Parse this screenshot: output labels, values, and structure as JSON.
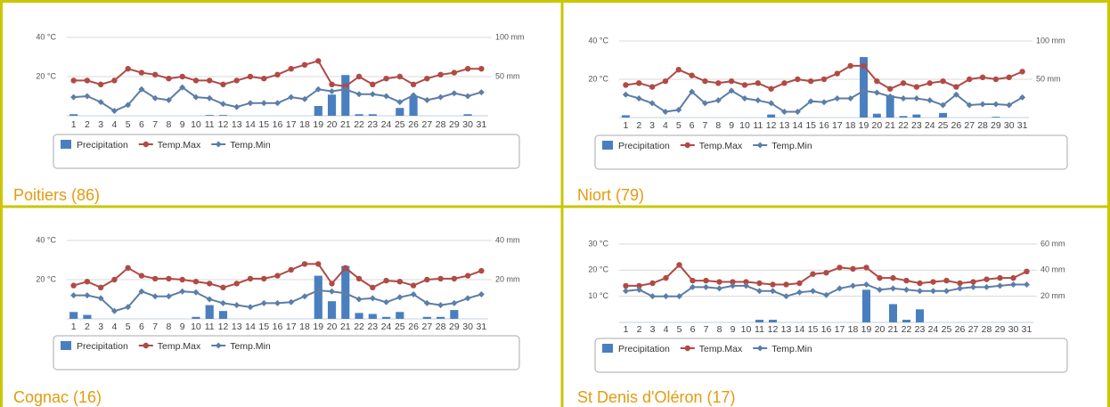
{
  "chart_data": [
    {
      "type": "combo",
      "title": "Poitiers (86)",
      "categories": [
        1,
        2,
        3,
        4,
        5,
        6,
        7,
        8,
        9,
        10,
        11,
        12,
        13,
        14,
        15,
        16,
        17,
        18,
        19,
        20,
        21,
        22,
        23,
        24,
        25,
        26,
        27,
        28,
        29,
        30,
        31
      ],
      "series": [
        {
          "name": "Precipitation",
          "type": "bar",
          "axis": "y2",
          "color": "#4a7fbf",
          "values": [
            2,
            0,
            0,
            0,
            0,
            0,
            0,
            0,
            0,
            0,
            1,
            1,
            0,
            0,
            0,
            0,
            0,
            0,
            12.5,
            27,
            52,
            2,
            2,
            0,
            10,
            25,
            0,
            0,
            0,
            2,
            0
          ]
        },
        {
          "name": "Temp.Max",
          "type": "line",
          "color": "#b04a45",
          "values": [
            18,
            18,
            16,
            18,
            24,
            22,
            21,
            19,
            20,
            18,
            18,
            16,
            18,
            20,
            19,
            21,
            24,
            26,
            28,
            16,
            15,
            20,
            16,
            19,
            20,
            16,
            19,
            21,
            22,
            24,
            24
          ]
        },
        {
          "name": "Temp.Min",
          "type": "line",
          "color": "#5b7ea8",
          "values": [
            9.5,
            10,
            7,
            2.5,
            5.5,
            13.5,
            9,
            8,
            14.5,
            9.5,
            9,
            6,
            4.5,
            6.5,
            6.5,
            6.5,
            9.5,
            8.5,
            13.5,
            12.5,
            13.5,
            11,
            11,
            10,
            7,
            10.5,
            8,
            9.5,
            11.5,
            10,
            12
          ]
        }
      ],
      "ylim": [
        0,
        40
      ],
      "yticks": [
        {
          "value": 40,
          "label": "40 °C"
        },
        {
          "value": 20,
          "label": "20 °C"
        }
      ],
      "y2lim": [
        0,
        100
      ],
      "y2ticks": [
        {
          "value": 100,
          "label": "100 mm"
        },
        {
          "value": 50,
          "label": "50 mm"
        }
      ],
      "grid": true
    },
    {
      "type": "combo",
      "title": "Niort (79)",
      "categories": [
        1,
        2,
        3,
        4,
        5,
        6,
        7,
        8,
        9,
        10,
        11,
        12,
        13,
        14,
        15,
        16,
        17,
        18,
        19,
        20,
        21,
        22,
        23,
        24,
        25,
        26,
        27,
        28,
        29,
        30,
        31
      ],
      "series": [
        {
          "name": "Precipitation",
          "type": "bar",
          "axis": "y2",
          "color": "#4a7fbf",
          "values": [
            3,
            0,
            0,
            0,
            0,
            0,
            0,
            0,
            0,
            0,
            0,
            4,
            0,
            0,
            0,
            0,
            0,
            0,
            79,
            5,
            29,
            2,
            4,
            0,
            6,
            0,
            0,
            0,
            1,
            0,
            0
          ]
        },
        {
          "name": "Temp.Max",
          "type": "line",
          "color": "#b04a45",
          "values": [
            17,
            18,
            16,
            19,
            25,
            22,
            19,
            18,
            19,
            17,
            18,
            15,
            18,
            20,
            19,
            20,
            23,
            27,
            27,
            19,
            15,
            18,
            16,
            18,
            19,
            16,
            20,
            21,
            20,
            21,
            24
          ]
        },
        {
          "name": "Temp.Min",
          "type": "line",
          "color": "#5b7ea8",
          "values": [
            12,
            10,
            7.5,
            3,
            4,
            13.5,
            7.5,
            9,
            14,
            10,
            9,
            7.5,
            3,
            3,
            8.5,
            8,
            10,
            10,
            14,
            13,
            11,
            10,
            10,
            9,
            6.5,
            12,
            6.5,
            7,
            7,
            6.5,
            10.5
          ]
        }
      ],
      "ylim": [
        0,
        40
      ],
      "yticks": [
        {
          "value": 40,
          "label": "40 °C"
        },
        {
          "value": 20,
          "label": "20 °C"
        }
      ],
      "y2lim": [
        0,
        100
      ],
      "y2ticks": [
        {
          "value": 100,
          "label": "100 mm"
        },
        {
          "value": 50,
          "label": "50 mm"
        }
      ],
      "grid": true
    },
    {
      "type": "combo",
      "title": "Cognac (16)",
      "categories": [
        1,
        2,
        3,
        4,
        5,
        6,
        7,
        8,
        9,
        10,
        11,
        12,
        13,
        14,
        15,
        16,
        17,
        18,
        19,
        20,
        21,
        22,
        23,
        24,
        25,
        26,
        27,
        28,
        29,
        30,
        31
      ],
      "series": [
        {
          "name": "Precipitation",
          "type": "bar",
          "axis": "y2",
          "color": "#4a7fbf",
          "values": [
            3.5,
            2,
            0,
            0,
            0,
            0,
            0,
            0,
            0,
            1,
            7,
            4,
            0,
            0,
            0,
            0,
            0,
            0,
            22,
            9,
            27,
            3,
            2.5,
            1,
            3.5,
            0,
            1,
            1,
            4.5,
            0,
            0
          ]
        },
        {
          "name": "Temp.Max",
          "type": "line",
          "color": "#b04a45",
          "values": [
            17,
            19,
            16,
            20,
            26,
            22,
            20.5,
            20.5,
            20,
            19,
            18,
            16,
            18,
            20.5,
            20.5,
            22,
            25,
            28,
            28,
            18,
            26,
            20.5,
            16,
            19.5,
            19,
            17,
            20,
            20.5,
            20.5,
            22,
            24.5
          ]
        },
        {
          "name": "Temp.Min",
          "type": "line",
          "color": "#5b7ea8",
          "values": [
            12,
            12,
            10.5,
            4,
            6,
            14,
            11.5,
            11.5,
            14,
            13.5,
            10,
            8,
            7,
            6,
            8,
            8,
            8.5,
            11.5,
            14.5,
            14,
            13,
            10,
            10.5,
            8.5,
            11,
            12.5,
            8,
            7,
            8,
            10.5,
            12.5
          ]
        }
      ],
      "ylim": [
        0,
        40
      ],
      "yticks": [
        {
          "value": 40,
          "label": "40 °C"
        },
        {
          "value": 20,
          "label": "20 °C"
        }
      ],
      "y2lim": [
        0,
        40
      ],
      "y2ticks": [
        {
          "value": 40,
          "label": "40 mm"
        },
        {
          "value": 20,
          "label": "20 mm"
        }
      ],
      "grid": true
    },
    {
      "type": "combo",
      "title": "St Denis d'Oléron (17)",
      "categories": [
        1,
        2,
        3,
        4,
        5,
        6,
        7,
        8,
        9,
        10,
        11,
        12,
        13,
        14,
        15,
        16,
        17,
        18,
        19,
        20,
        21,
        22,
        23,
        24,
        25,
        26,
        27,
        28,
        29,
        30,
        31
      ],
      "series": [
        {
          "name": "Precipitation",
          "type": "bar",
          "axis": "y2",
          "color": "#4a7fbf",
          "values": [
            0,
            0,
            0,
            0,
            0,
            0,
            0,
            0,
            0,
            0,
            2,
            2,
            0,
            0,
            0,
            0,
            0,
            0,
            25,
            0,
            14,
            2,
            10,
            0,
            0,
            0,
            0,
            0,
            0,
            0,
            0
          ]
        },
        {
          "name": "Temp.Max",
          "type": "line",
          "color": "#b04a45",
          "values": [
            14,
            14,
            15,
            17,
            22,
            16,
            16,
            15.5,
            15.5,
            15.5,
            15,
            14.5,
            14.5,
            15,
            18.5,
            19,
            21,
            20.5,
            21,
            17,
            17,
            16,
            15,
            15.5,
            16,
            15,
            15.5,
            16.5,
            17,
            17,
            19.5
          ]
        },
        {
          "name": "Temp.Min",
          "type": "line",
          "color": "#5b7ea8",
          "values": [
            12,
            12.5,
            10,
            10,
            10,
            13.5,
            13.5,
            13,
            14,
            14,
            12,
            12,
            10,
            11.5,
            12,
            10.5,
            13,
            14,
            14.5,
            12.5,
            13,
            12.5,
            12,
            12,
            12,
            13,
            13.5,
            13.5,
            14,
            14.5,
            14.5
          ]
        }
      ],
      "ylim": [
        0,
        30
      ],
      "yticks": [
        {
          "value": 30,
          "label": "30 °C"
        },
        {
          "value": 20,
          "label": "20 °C"
        },
        {
          "value": 10,
          "label": "10 °C"
        }
      ],
      "y2lim": [
        0,
        60
      ],
      "y2ticks": [
        {
          "value": 60,
          "label": "60 mm"
        },
        {
          "value": 40,
          "label": "40 mm"
        },
        {
          "value": 20,
          "label": "20 mm"
        }
      ],
      "grid": true
    }
  ]
}
